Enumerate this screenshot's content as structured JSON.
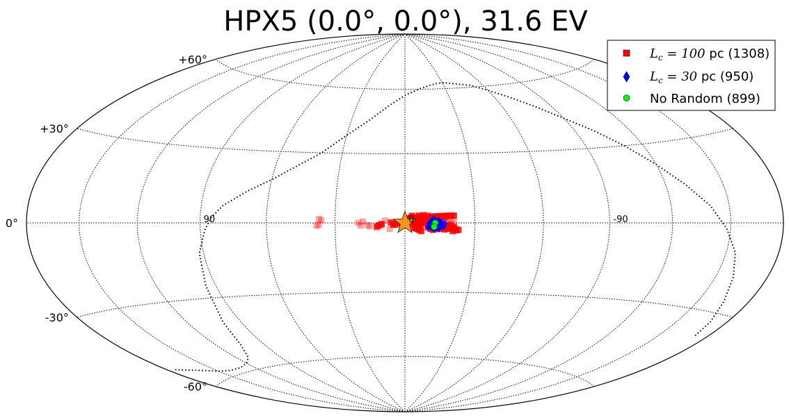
{
  "chart_data": {
    "type": "scatter",
    "projection": "hammer-aitoff",
    "title": "HPX5 (0.0°, 0.0°), 31.6 EV",
    "lat_ticks": [
      {
        "value": 60,
        "label": "+60°"
      },
      {
        "value": 30,
        "label": "+30°"
      },
      {
        "value": 0,
        "label": "0°"
      },
      {
        "value": -30,
        "label": "-30°"
      },
      {
        "value": -60,
        "label": "-60°"
      }
    ],
    "lon_ticks": [
      {
        "value": 90,
        "label": "90"
      },
      {
        "value": 0,
        "label": "0"
      },
      {
        "value": -90,
        "label": "-90"
      }
    ],
    "grid": true,
    "legend_position": "top-right",
    "source_marker": {
      "lon": 0.0,
      "lat": 0.0,
      "color": "#f7941d",
      "marker": "star"
    },
    "series": [
      {
        "name": "L_c = 100 pc (1308)",
        "legend_math": "L",
        "legend_sub": "c",
        "legend_eq": " = 100",
        "legend_rest": " pc (1308)",
        "color": "#ff0000",
        "marker": "square",
        "points": [
          [
            -10,
            3
          ],
          [
            -11,
            2.5
          ],
          [
            -12,
            2.5
          ],
          [
            -13,
            2.8
          ],
          [
            -14,
            2.7
          ],
          [
            -15,
            2.9
          ],
          [
            -16,
            2.9
          ],
          [
            -17,
            3.0
          ],
          [
            -18,
            3.0
          ],
          [
            -19,
            3.1
          ],
          [
            -20,
            3.0
          ],
          [
            -21,
            3.1
          ],
          [
            -15,
            2.5
          ],
          [
            -17,
            2.4
          ],
          [
            -8,
            3.3
          ],
          [
            -7,
            2.6
          ],
          [
            -6,
            3.1
          ],
          [
            -9,
            2.0
          ],
          [
            -3,
            3.0
          ],
          [
            -4,
            2.4
          ],
          [
            -1.5,
            1.8
          ],
          [
            -2.5,
            2.2
          ],
          [
            -5,
            2.0
          ],
          [
            -4,
            0.5
          ],
          [
            -5,
            0.2
          ],
          [
            -6,
            -0.2
          ],
          [
            -7,
            0.4
          ],
          [
            -6.5,
            -1.0
          ],
          [
            -5.5,
            -1.5
          ],
          [
            -8,
            -0.2
          ],
          [
            -9,
            0.2
          ],
          [
            -10,
            -0.5
          ],
          [
            -4.5,
            -1.0
          ],
          [
            -3.5,
            -0.5
          ],
          [
            -4,
            -2.2
          ],
          [
            -5,
            -2.5
          ],
          [
            -6,
            -3.0
          ],
          [
            -7,
            -3.5
          ],
          [
            -2,
            0.5
          ],
          [
            -1,
            1.0
          ],
          [
            0,
            -1.0
          ],
          [
            -18,
            -1.5
          ],
          [
            -19,
            -2.0
          ],
          [
            -20,
            -2.5
          ],
          [
            -21,
            -2.3
          ],
          [
            -22,
            -2.8
          ],
          [
            -23,
            -3.0
          ],
          [
            -19,
            -1.0
          ],
          [
            -20,
            -1.2
          ],
          [
            -21,
            -1.8
          ],
          [
            -18.5,
            -2.5
          ],
          [
            -22,
            -3.2
          ],
          [
            -20.5,
            -3.5
          ],
          [
            -15,
            -2.5
          ],
          [
            -16,
            -2.2
          ],
          [
            -17,
            -2.8
          ],
          [
            -14,
            -2.0
          ],
          [
            -10,
            -2.0
          ],
          [
            -11,
            -2.5
          ],
          [
            -12,
            -3.0
          ],
          [
            -13,
            -2.2
          ],
          [
            -12.5,
            -1.5
          ],
          [
            -11.5,
            -1.0
          ],
          [
            10,
            -0.5
          ],
          [
            11,
            -1.0
          ],
          [
            12,
            -1.5
          ],
          [
            5,
            -0.8
          ],
          [
            4,
            -0.7
          ],
          [
            2,
            -0.2
          ],
          [
            1,
            0.5
          ],
          [
            6,
            0.2
          ],
          [
            3.5,
            0.3
          ]
        ]
      },
      {
        "name": "L_c = 30 pc (950)",
        "legend_math": "L",
        "legend_sub": "c",
        "legend_eq": " = 30",
        "legend_rest": " pc (950)",
        "color": "#0000ff",
        "marker": "diamond",
        "points": [
          [
            -11,
            0.3
          ],
          [
            -12,
            0.8
          ],
          [
            -13,
            0.5
          ],
          [
            -14,
            0.0
          ],
          [
            -15,
            -0.5
          ],
          [
            -12.5,
            -0.5
          ],
          [
            -11.5,
            -1.0
          ],
          [
            -13,
            -1.5
          ],
          [
            -14,
            -1.2
          ],
          [
            -15,
            -1.8
          ],
          [
            -14.5,
            -2.5
          ],
          [
            -13.5,
            -2.2
          ],
          [
            -12,
            -2.0
          ],
          [
            -16,
            -0.8
          ],
          [
            -16.5,
            -1.5
          ],
          [
            -15.5,
            0.3
          ],
          [
            -14.5,
            0.8
          ],
          [
            -13,
            1.2
          ],
          [
            -12,
            1.4
          ],
          [
            -10.5,
            -0.3
          ],
          [
            -11,
            -1.5
          ],
          [
            -12.5,
            -2.5
          ],
          [
            -10,
            -1.8
          ],
          [
            -17,
            -0.3
          ]
        ]
      },
      {
        "name": "No Random (899)",
        "legend_math": "",
        "legend_sub": "",
        "legend_eq": "",
        "legend_rest": "No Random (899)",
        "color": "#00ff00",
        "marker": "circle",
        "points": [
          [
            -13,
            0.0
          ],
          [
            -12.5,
            -1.7
          ]
        ]
      }
    ],
    "extra_series_faded": [
      [
        -19,
        0.8
      ],
      [
        -20,
        -0.4
      ],
      [
        -21,
        0.5
      ],
      [
        -6,
        0.5
      ],
      [
        -7,
        -0.5
      ],
      [
        -8.5,
        -1.5
      ],
      [
        -10,
        1.5
      ],
      [
        -11,
        2.0
      ],
      [
        -18,
        1.5
      ],
      [
        10,
        -1.0
      ],
      [
        20,
        0.0
      ],
      [
        19,
        -1.2
      ],
      [
        18,
        0.6
      ],
      [
        8.5,
        1.0
      ],
      [
        37,
        -0.8
      ],
      [
        38,
        -1.2
      ],
      [
        36,
        1.2
      ],
      [
        37,
        1.6
      ],
      [
        16,
        -1.0
      ],
      [
        15,
        -1.5
      ],
      [
        12,
        -2.0
      ],
      [
        6.5,
        -2.6
      ]
    ],
    "track_curve": [
      [
        175,
        -52
      ],
      [
        165,
        -54
      ],
      [
        160,
        -55
      ],
      [
        150,
        -57
      ],
      [
        140,
        -58
      ],
      [
        130,
        -58
      ],
      [
        120,
        -57
      ],
      [
        112,
        -55
      ],
      [
        105,
        -50
      ],
      [
        100,
        -40
      ],
      [
        95,
        -25
      ],
      [
        92,
        -12
      ],
      [
        88,
        -3
      ],
      [
        85,
        2
      ],
      [
        80,
        7
      ],
      [
        70,
        13
      ],
      [
        60,
        18
      ],
      [
        50,
        24
      ],
      [
        40,
        30
      ],
      [
        30,
        38
      ],
      [
        20,
        45
      ],
      [
        10,
        52
      ],
      [
        0,
        57
      ],
      [
        -10,
        60
      ],
      [
        -20,
        62
      ],
      [
        -30,
        63
      ],
      [
        -40,
        62
      ],
      [
        -50,
        61
      ],
      [
        -60,
        58
      ],
      [
        -70,
        54
      ],
      [
        -80,
        49
      ],
      [
        -90,
        43
      ],
      [
        -100,
        37
      ],
      [
        -110,
        30
      ],
      [
        -120,
        22
      ],
      [
        -130,
        14
      ],
      [
        -140,
        6
      ],
      [
        -148,
        -2
      ],
      [
        -155,
        -10
      ],
      [
        -160,
        -18
      ],
      [
        -165,
        -26
      ],
      [
        -170,
        -33
      ],
      [
        -172,
        -38
      ]
    ]
  }
}
